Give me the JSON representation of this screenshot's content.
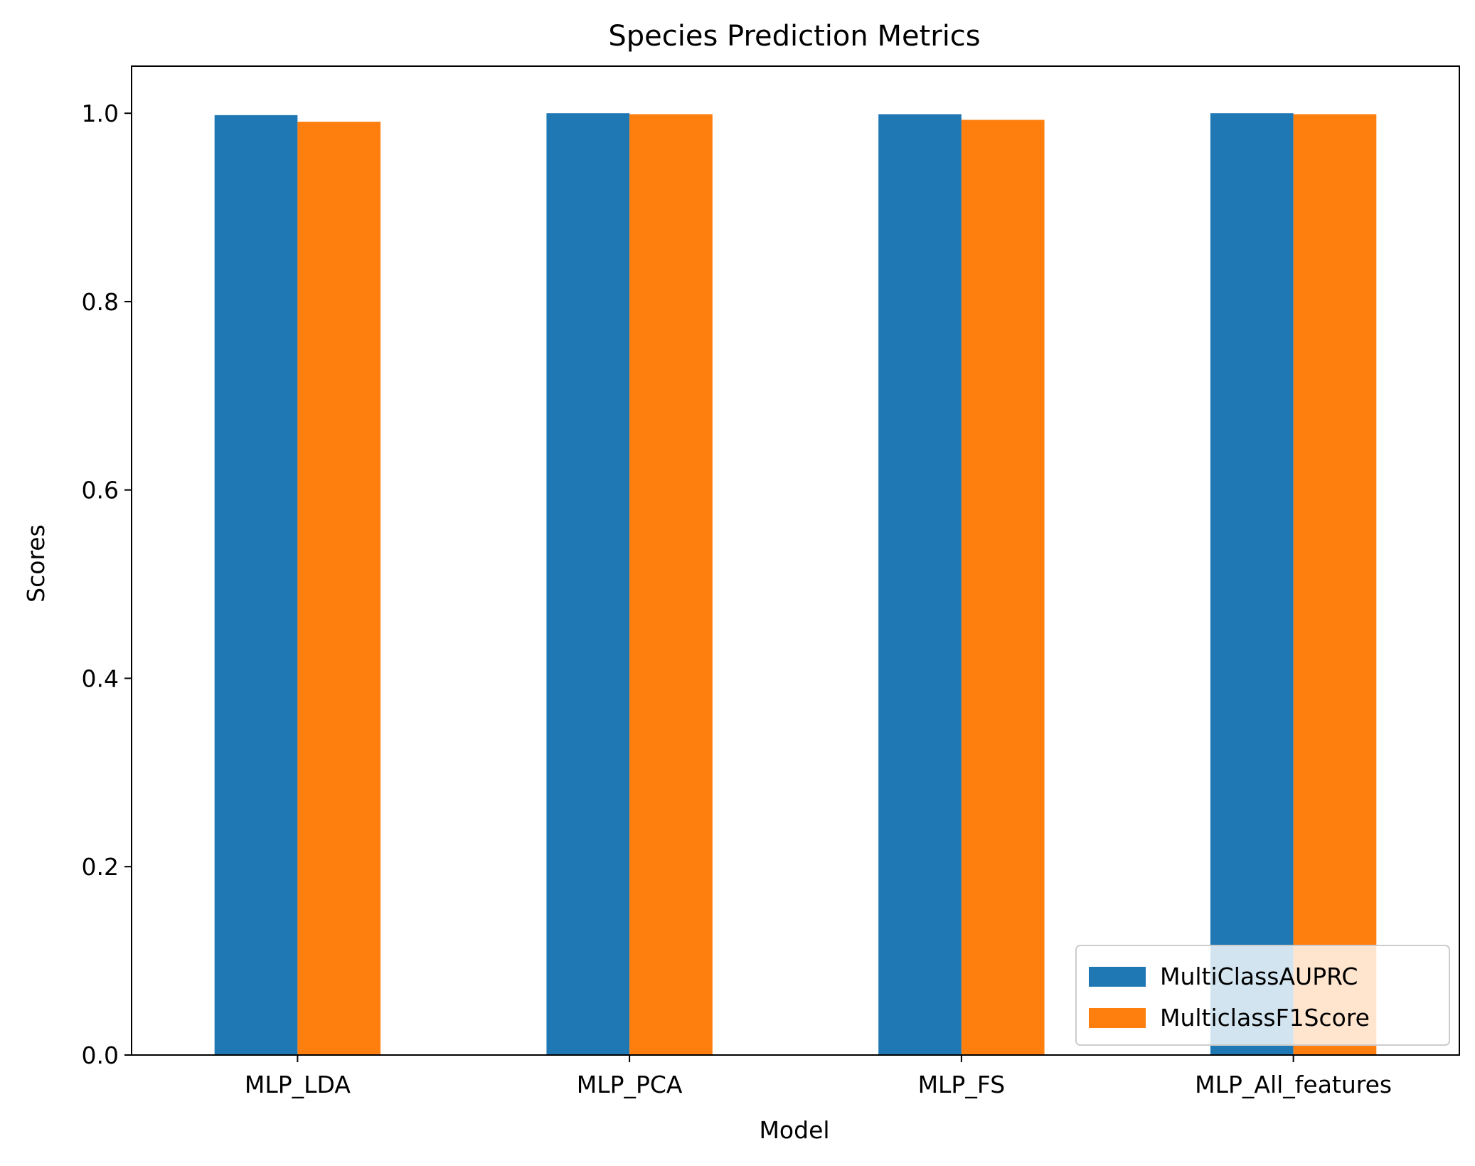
{
  "chart_data": {
    "type": "bar",
    "title": "Species Prediction Metrics",
    "xlabel": "Model",
    "ylabel": "Scores",
    "categories": [
      "MLP_LDA",
      "MLP_PCA",
      "MLP_FS",
      "MLP_All_features"
    ],
    "series": [
      {
        "name": "MultiClassAUPRC",
        "values": [
          0.998,
          1.0,
          0.999,
          1.0
        ],
        "color": "#1f77b4"
      },
      {
        "name": "MulticlassF1Score",
        "values": [
          0.991,
          0.999,
          0.993,
          0.999
        ],
        "color": "#ff7f0e"
      }
    ],
    "ylim": [
      0.0,
      1.05
    ],
    "yticks": [
      0.0,
      0.2,
      0.4,
      0.6,
      0.8,
      1.0
    ],
    "ytick_labels": [
      "0.0",
      "0.2",
      "0.4",
      "0.6",
      "0.8",
      "1.0"
    ],
    "grid": false,
    "legend_position": "lower-right"
  }
}
